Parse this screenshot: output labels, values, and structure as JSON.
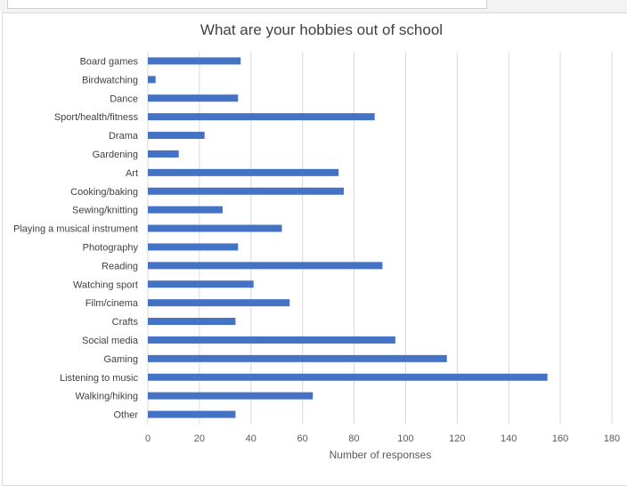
{
  "chart_data": {
    "type": "bar",
    "orientation": "horizontal",
    "title": "What are your hobbies out of school",
    "xlabel": "Number of responses",
    "ylabel": "",
    "xlim": [
      0,
      180
    ],
    "xticks": [
      0,
      20,
      40,
      60,
      80,
      100,
      120,
      140,
      160,
      180
    ],
    "grid": "vertical",
    "bar_color": "#4472c4",
    "categories": [
      "Board games",
      "Birdwatching",
      "Dance",
      "Sport/health/fitness",
      "Drama",
      "Gardening",
      "Art",
      "Cooking/baking",
      "Sewing/knitting",
      "Playing a musical instrument",
      "Photography",
      "Reading",
      "Watching sport",
      "Film/cinema",
      "Crafts",
      "Social media",
      "Gaming",
      "Listening to music",
      "Walking/hiking",
      "Other"
    ],
    "values": [
      36,
      3,
      35,
      88,
      22,
      12,
      74,
      76,
      29,
      52,
      35,
      91,
      41,
      55,
      34,
      96,
      116,
      155,
      64,
      34
    ]
  }
}
